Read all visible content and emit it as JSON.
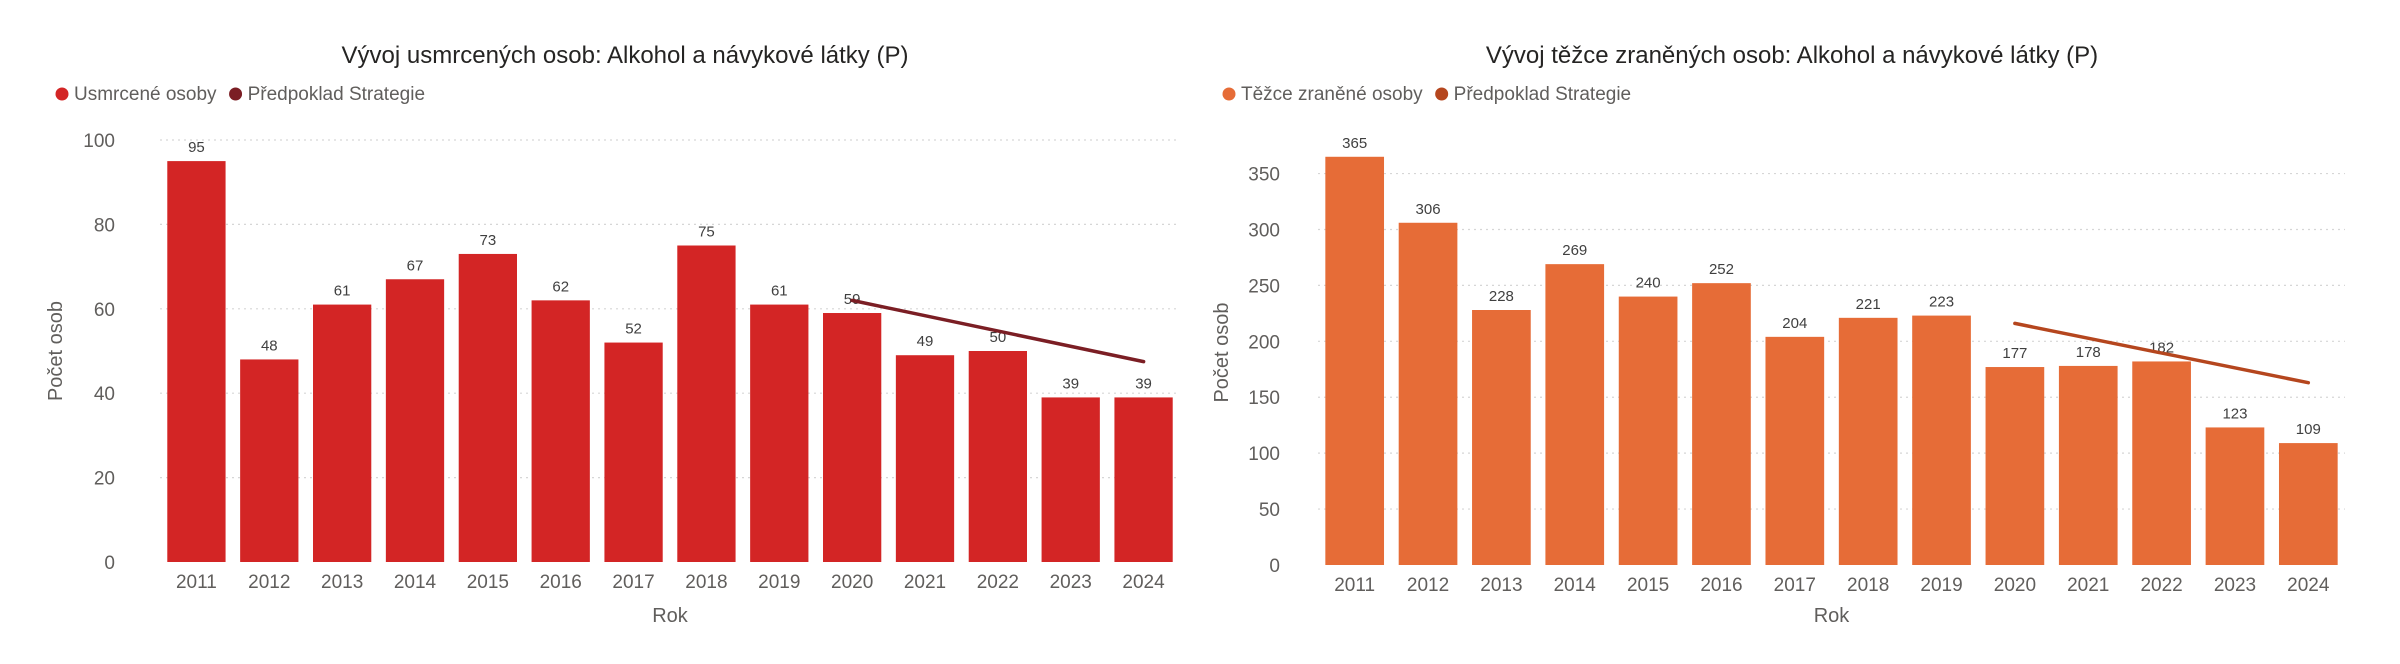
{
  "chart_data": [
    {
      "type": "bar",
      "title": "Vývoj usmrcených osob: Alkohol a návykové látky (P)",
      "categories": [
        "2011",
        "2012",
        "2013",
        "2014",
        "2015",
        "2016",
        "2017",
        "2018",
        "2019",
        "2020",
        "2021",
        "2022",
        "2023",
        "2024"
      ],
      "series": [
        {
          "name": "Usmrcené osoby",
          "kind": "bar",
          "color": "#D32525",
          "values": [
            95,
            48,
            61,
            67,
            73,
            62,
            52,
            75,
            61,
            59,
            49,
            50,
            39,
            39
          ]
        },
        {
          "name": "Předpoklad Strategie",
          "kind": "line",
          "color": "#7B1E24",
          "x": [
            "2020",
            "2024"
          ],
          "values": [
            62,
            47.5
          ]
        }
      ],
      "xlabel": "Rok",
      "ylabel": "Počet osob",
      "ylim": [
        0,
        100
      ],
      "yticks": [
        0,
        20,
        40,
        60,
        80,
        100
      ],
      "grid": true,
      "legend": "top-left"
    },
    {
      "type": "bar",
      "title": "Vývoj těžce zraněných osob: Alkohol a návykové látky (P)",
      "categories": [
        "2011",
        "2012",
        "2013",
        "2014",
        "2015",
        "2016",
        "2017",
        "2018",
        "2019",
        "2020",
        "2021",
        "2022",
        "2023",
        "2024"
      ],
      "series": [
        {
          "name": "Těžce zraněné osoby",
          "kind": "bar",
          "color": "#E66C37",
          "values": [
            365,
            306,
            228,
            269,
            240,
            252,
            204,
            221,
            223,
            177,
            178,
            182,
            123,
            109
          ]
        },
        {
          "name": "Předpoklad Strategie",
          "kind": "line",
          "color": "#B5461E",
          "x": [
            "2020",
            "2024"
          ],
          "values": [
            216,
            163
          ]
        }
      ],
      "xlabel": "Rok",
      "ylabel": "Počet osob",
      "ylim": [
        0,
        380
      ],
      "yticks": [
        0,
        50,
        100,
        150,
        200,
        250,
        300,
        350
      ],
      "grid": true,
      "legend": "top-left"
    }
  ]
}
